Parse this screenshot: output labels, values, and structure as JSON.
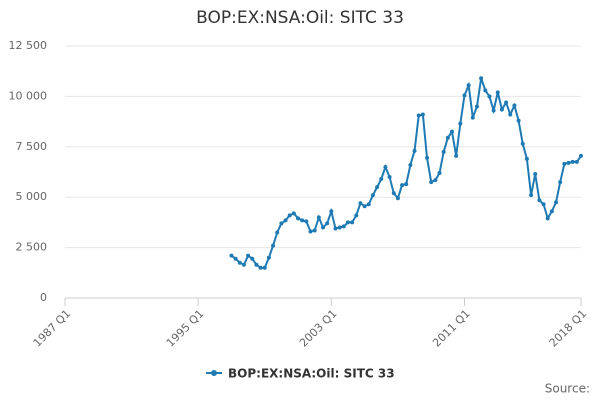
{
  "chart_data": {
    "type": "line",
    "title": "BOP:EX:NSA:Oil: SITC 33",
    "source": "Source:",
    "xlim": [
      "1987 Q1",
      "2018 Q1"
    ],
    "xticks": [
      "1987 Q1",
      "1995 Q1",
      "2003 Q1",
      "2011 Q1",
      "2018 Q1"
    ],
    "ylim": [
      0,
      12500
    ],
    "yticks": [
      0,
      {
        "value": 2500,
        "label": "2 500"
      },
      {
        "value": 5000,
        "label": "5 000"
      },
      {
        "value": 7500,
        "label": "7 500"
      },
      {
        "value": 10000,
        "label": "10 000"
      },
      {
        "value": 12500,
        "label": "12 500"
      }
    ],
    "grid": true,
    "legend": "bottom",
    "x": [
      "1997 Q1",
      "1997 Q2",
      "1997 Q3",
      "1997 Q4",
      "1998 Q1",
      "1998 Q2",
      "1998 Q3",
      "1998 Q4",
      "1999 Q1",
      "1999 Q2",
      "1999 Q3",
      "1999 Q4",
      "2000 Q1",
      "2000 Q2",
      "2000 Q3",
      "2000 Q4",
      "2001 Q1",
      "2001 Q2",
      "2001 Q3",
      "2001 Q4",
      "2002 Q1",
      "2002 Q2",
      "2002 Q3",
      "2002 Q4",
      "2003 Q1",
      "2003 Q2",
      "2003 Q3",
      "2003 Q4",
      "2004 Q1",
      "2004 Q2",
      "2004 Q3",
      "2004 Q4",
      "2005 Q1",
      "2005 Q2",
      "2005 Q3",
      "2005 Q4",
      "2006 Q1",
      "2006 Q2",
      "2006 Q3",
      "2006 Q4",
      "2007 Q1",
      "2007 Q2",
      "2007 Q3",
      "2007 Q4",
      "2008 Q1",
      "2008 Q2",
      "2008 Q3",
      "2008 Q4",
      "2009 Q1",
      "2009 Q2",
      "2009 Q3",
      "2009 Q4",
      "2010 Q1",
      "2010 Q2",
      "2010 Q3",
      "2010 Q4",
      "2011 Q1",
      "2011 Q2",
      "2011 Q3",
      "2011 Q4",
      "2012 Q1",
      "2012 Q2",
      "2012 Q3",
      "2012 Q4",
      "2013 Q1",
      "2013 Q2",
      "2013 Q3",
      "2013 Q4",
      "2014 Q1",
      "2014 Q2",
      "2014 Q3",
      "2014 Q4",
      "2015 Q1",
      "2015 Q2",
      "2015 Q3",
      "2015 Q4",
      "2016 Q1",
      "2016 Q2",
      "2016 Q3",
      "2016 Q4",
      "2017 Q1",
      "2017 Q2",
      "2017 Q3",
      "2017 Q4",
      "2018 Q1"
    ],
    "series": [
      {
        "name": "BOP:EX:NSA:Oil: SITC 33",
        "color": "#1f7ab4",
        "values": [
          2100,
          1950,
          1750,
          1650,
          2100,
          1950,
          1650,
          1500,
          1500,
          2000,
          2600,
          3250,
          3700,
          3850,
          4100,
          4200,
          3950,
          3850,
          3800,
          3300,
          3350,
          4000,
          3500,
          3700,
          4300,
          3450,
          3500,
          3550,
          3750,
          3750,
          4100,
          4700,
          4550,
          4650,
          5100,
          5500,
          5900,
          6500,
          6000,
          5200,
          4950,
          5600,
          5650,
          6600,
          7300,
          9050,
          9100,
          6950,
          5750,
          5850,
          6200,
          7250,
          7950,
          8250,
          7050,
          8650,
          10050,
          10550,
          8950,
          9500,
          10900,
          10300,
          10000,
          9300,
          10200,
          9350,
          9700,
          9100,
          9550,
          8800,
          7650,
          6900,
          5100,
          6150,
          4850,
          4650,
          3950,
          4300,
          4750,
          5750,
          6650,
          6700,
          6750,
          6750,
          7050
        ]
      }
    ]
  }
}
